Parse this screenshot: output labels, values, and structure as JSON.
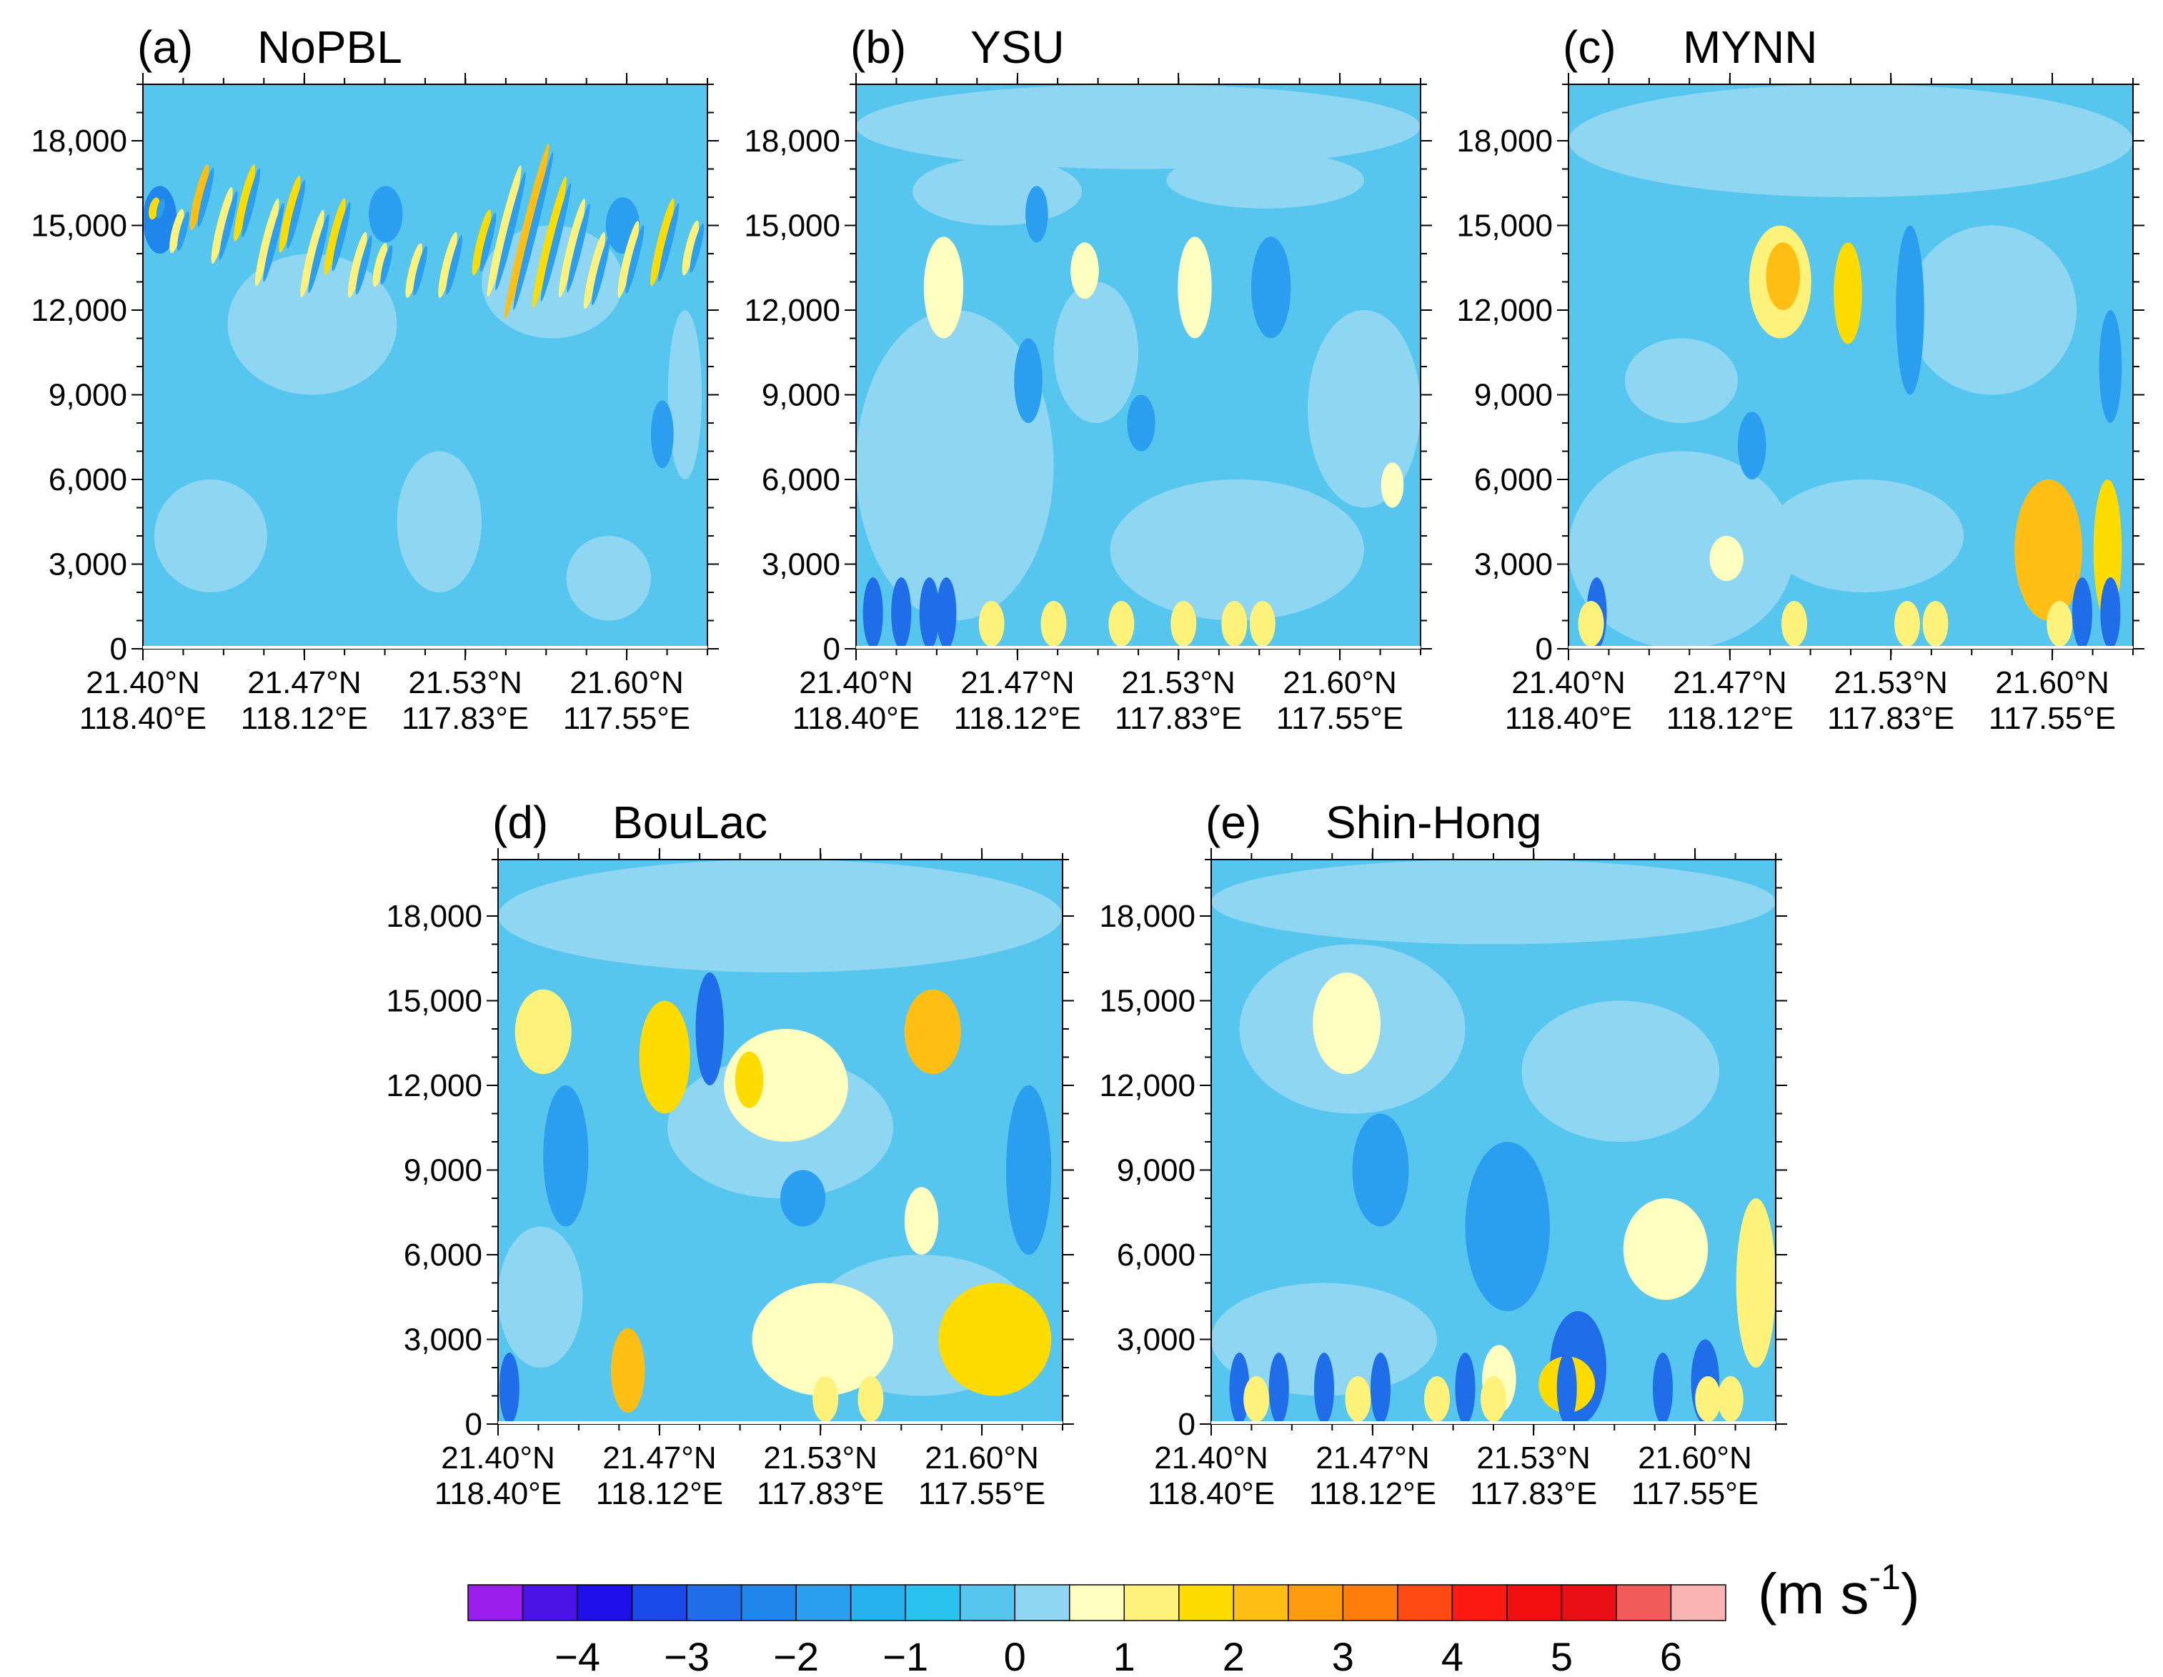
{
  "chart_data": {
    "type": "heatmap",
    "figure_layout": "2 rows: panels a, b, c on top; panels d, e centered below; shared horizontal colorbar at bottom",
    "colormap": {
      "colors": [
        "#9b1ded",
        "#4a14e6",
        "#1f0fe8",
        "#1a4be8",
        "#1f6de8",
        "#1f87ec",
        "#2b9ef0",
        "#23b2ee",
        "#2ac3f0",
        "#57c6ee",
        "#8ed6f2",
        "#ffffc0",
        "#fff27a",
        "#ffdc00",
        "#ffbe14",
        "#ff9b0d",
        "#ff7d0a",
        "#ff4a14",
        "#fd1a12",
        "#f20f0f",
        "#e80f15",
        "#f35a5a",
        "#fab4b4"
      ],
      "tick_labels": [
        "-4",
        "-3",
        "-2",
        "-1",
        "0",
        "1",
        "2",
        "3",
        "4",
        "5",
        "6"
      ],
      "unit_base": "(m s",
      "unit_exp": "-1",
      "unit_close": ")"
    },
    "y_axis": {
      "ticks": [
        0,
        3000,
        6000,
        9000,
        12000,
        15000,
        18000
      ],
      "tick_labels": [
        "0",
        "3,000",
        "6,000",
        "9,000",
        "12,000",
        "15,000",
        "18,000"
      ],
      "ylim": [
        0,
        20000
      ],
      "minor_step": 1000
    },
    "x_axis": {
      "tick_labels_lat": [
        "21.40°N",
        "21.47°N",
        "21.53°N",
        "21.60°N"
      ],
      "tick_labels_lon": [
        "118.40°E",
        "118.12°E",
        "117.83°E",
        "117.55°E"
      ],
      "tick_fractions": [
        0,
        0.286,
        0.571,
        0.857
      ]
    },
    "panels": [
      {
        "id": "a",
        "letter": "(a)",
        "name": "NoPBL",
        "background": "#57c6ee",
        "blobs": [
          [
            0.0,
            0.0,
            1.0,
            0.55,
            "#57c6ee"
          ],
          [
            0.15,
            0.45,
            0.3,
            0.25,
            "#8ed6f2"
          ],
          [
            0.6,
            0.55,
            0.25,
            0.2,
            "#8ed6f2"
          ],
          [
            0.02,
            0.1,
            0.2,
            0.2,
            "#8ed6f2"
          ],
          [
            0.45,
            0.1,
            0.15,
            0.25,
            "#8ed6f2"
          ],
          [
            0.75,
            0.05,
            0.15,
            0.15,
            "#8ed6f2"
          ],
          [
            0.93,
            0.3,
            0.06,
            0.3,
            "#8ed6f2"
          ]
        ],
        "streaks": [
          [
            0.02,
            0.76,
            0.8,
            "#ffdc00"
          ],
          [
            0.06,
            0.7,
            0.78,
            "#fff27a"
          ],
          [
            0.1,
            0.74,
            0.86,
            "#ffbe14"
          ],
          [
            0.14,
            0.68,
            0.82,
            "#fff27a"
          ],
          [
            0.18,
            0.72,
            0.86,
            "#ffdc00"
          ],
          [
            0.22,
            0.64,
            0.8,
            "#fff27a"
          ],
          [
            0.26,
            0.7,
            0.84,
            "#ffdc00"
          ],
          [
            0.3,
            0.62,
            0.78,
            "#fff27a"
          ],
          [
            0.34,
            0.66,
            0.8,
            "#ffdc00"
          ],
          [
            0.38,
            0.62,
            0.74,
            "#fff27a"
          ],
          [
            0.42,
            0.64,
            0.72,
            "#fff27a"
          ],
          [
            0.48,
            0.62,
            0.72,
            "#fff27a"
          ],
          [
            0.54,
            0.62,
            0.74,
            "#fff27a"
          ],
          [
            0.6,
            0.66,
            0.78,
            "#ffdc00"
          ],
          [
            0.64,
            0.62,
            0.86,
            "#fff27a"
          ],
          [
            0.68,
            0.58,
            0.9,
            "#ffbe14"
          ],
          [
            0.72,
            0.6,
            0.84,
            "#ffdc00"
          ],
          [
            0.76,
            0.62,
            0.8,
            "#fff27a"
          ],
          [
            0.8,
            0.6,
            0.74,
            "#fff27a"
          ],
          [
            0.86,
            0.62,
            0.76,
            "#fff27a"
          ],
          [
            0.92,
            0.64,
            0.8,
            "#ffdc00"
          ],
          [
            0.97,
            0.66,
            0.76,
            "#fff27a"
          ]
        ],
        "dark": [
          [
            0.0,
            0.7,
            0.06,
            0.12,
            "#1f87ec"
          ],
          [
            0.4,
            0.72,
            0.06,
            0.1,
            "#2b9ef0"
          ],
          [
            0.82,
            0.7,
            0.06,
            0.1,
            "#2b9ef0"
          ],
          [
            0.9,
            0.32,
            0.04,
            0.12,
            "#2b9ef0"
          ]
        ]
      },
      {
        "id": "b",
        "letter": "(b)",
        "name": "YSU",
        "background": "#57c6ee",
        "blobs": [
          [
            0.0,
            0.85,
            1.0,
            0.15,
            "#8ed6f2"
          ],
          [
            0.1,
            0.75,
            0.3,
            0.12,
            "#8ed6f2"
          ],
          [
            0.55,
            0.78,
            0.35,
            0.1,
            "#8ed6f2"
          ],
          [
            0.0,
            0.05,
            0.35,
            0.55,
            "#8ed6f2"
          ],
          [
            0.45,
            0.05,
            0.45,
            0.25,
            "#8ed6f2"
          ],
          [
            0.8,
            0.25,
            0.2,
            0.35,
            "#8ed6f2"
          ],
          [
            0.35,
            0.4,
            0.15,
            0.25,
            "#8ed6f2"
          ]
        ],
        "streaks": [],
        "dark": [
          [
            0.28,
            0.4,
            0.05,
            0.15,
            "#2b9ef0"
          ],
          [
            0.48,
            0.35,
            0.05,
            0.1,
            "#2b9ef0"
          ],
          [
            0.7,
            0.55,
            0.07,
            0.18,
            "#2b9ef0"
          ],
          [
            0.3,
            0.72,
            0.04,
            0.1,
            "#2b9ef0"
          ]
        ],
        "warm": [
          [
            0.12,
            0.55,
            0.07,
            0.18,
            "#ffffc0"
          ],
          [
            0.38,
            0.62,
            0.05,
            0.1,
            "#ffffc0"
          ],
          [
            0.57,
            0.55,
            0.06,
            0.18,
            "#ffffc0"
          ],
          [
            0.93,
            0.25,
            0.04,
            0.08,
            "#ffffc0"
          ]
        ],
        "surface": {
          "cold": [
            0.03,
            0.08,
            0.13,
            0.16
          ],
          "warm": [
            0.24,
            0.35,
            0.47,
            0.58,
            0.67,
            0.72
          ]
        }
      },
      {
        "id": "c",
        "letter": "(c)",
        "name": "MYNN",
        "background": "#57c6ee",
        "blobs": [
          [
            0.0,
            0.8,
            1.0,
            0.2,
            "#8ed6f2"
          ],
          [
            0.0,
            0.0,
            0.4,
            0.35,
            "#8ed6f2"
          ],
          [
            0.35,
            0.1,
            0.35,
            0.2,
            "#8ed6f2"
          ],
          [
            0.6,
            0.45,
            0.3,
            0.3,
            "#8ed6f2"
          ],
          [
            0.1,
            0.4,
            0.2,
            0.15,
            "#8ed6f2"
          ]
        ],
        "streaks": [],
        "dark": [
          [
            0.3,
            0.3,
            0.05,
            0.12,
            "#2b9ef0"
          ],
          [
            0.58,
            0.45,
            0.05,
            0.3,
            "#2b9ef0"
          ],
          [
            0.94,
            0.4,
            0.04,
            0.2,
            "#2b9ef0"
          ]
        ],
        "warm": [
          [
            0.32,
            0.55,
            0.11,
            0.2,
            "#fff27a"
          ],
          [
            0.35,
            0.6,
            0.06,
            0.12,
            "#ffbe14"
          ],
          [
            0.47,
            0.54,
            0.05,
            0.18,
            "#ffdc00"
          ],
          [
            0.79,
            0.05,
            0.12,
            0.25,
            "#ffbe14"
          ],
          [
            0.93,
            0.05,
            0.05,
            0.25,
            "#ffdc00"
          ],
          [
            0.25,
            0.12,
            0.06,
            0.08,
            "#ffffc0"
          ]
        ],
        "surface": {
          "cold": [
            0.05,
            0.91,
            0.96
          ],
          "warm": [
            0.04,
            0.4,
            0.6,
            0.65,
            0.87
          ]
        }
      },
      {
        "id": "d",
        "letter": "(d)",
        "name": "BouLac",
        "background": "#57c6ee",
        "blobs": [
          [
            0.0,
            0.8,
            1.0,
            0.2,
            "#8ed6f2"
          ],
          [
            0.3,
            0.4,
            0.4,
            0.25,
            "#8ed6f2"
          ],
          [
            0.55,
            0.05,
            0.4,
            0.25,
            "#8ed6f2"
          ],
          [
            0.0,
            0.1,
            0.15,
            0.25,
            "#8ed6f2"
          ]
        ],
        "streaks": [],
        "dark": [
          [
            0.35,
            0.6,
            0.05,
            0.2,
            "#1f6de8"
          ],
          [
            0.08,
            0.35,
            0.08,
            0.25,
            "#2b9ef0"
          ],
          [
            0.5,
            0.35,
            0.08,
            0.1,
            "#2b9ef0"
          ],
          [
            0.9,
            0.3,
            0.08,
            0.3,
            "#2b9ef0"
          ]
        ],
        "warm": [
          [
            0.03,
            0.62,
            0.1,
            0.15,
            "#fff27a"
          ],
          [
            0.25,
            0.55,
            0.09,
            0.2,
            "#ffdc00"
          ],
          [
            0.4,
            0.5,
            0.22,
            0.2,
            "#ffffc0"
          ],
          [
            0.42,
            0.56,
            0.05,
            0.1,
            "#ffdc00"
          ],
          [
            0.72,
            0.62,
            0.1,
            0.15,
            "#ffbe14"
          ],
          [
            0.72,
            0.3,
            0.06,
            0.12,
            "#ffffc0"
          ],
          [
            0.45,
            0.05,
            0.25,
            0.2,
            "#ffffc0"
          ],
          [
            0.2,
            0.02,
            0.06,
            0.15,
            "#ffbe14"
          ],
          [
            0.78,
            0.05,
            0.2,
            0.2,
            "#ffdc00"
          ]
        ],
        "surface": {
          "cold": [
            0.02
          ],
          "warm": [
            0.58,
            0.66
          ]
        }
      },
      {
        "id": "e",
        "letter": "(e)",
        "name": "Shin-Hong",
        "background": "#57c6ee",
        "blobs": [
          [
            0.0,
            0.85,
            1.0,
            0.15,
            "#8ed6f2"
          ],
          [
            0.05,
            0.55,
            0.4,
            0.3,
            "#8ed6f2"
          ],
          [
            0.55,
            0.5,
            0.35,
            0.25,
            "#8ed6f2"
          ],
          [
            0.0,
            0.05,
            0.4,
            0.2,
            "#8ed6f2"
          ]
        ],
        "streaks": [],
        "dark": [
          [
            0.45,
            0.2,
            0.15,
            0.3,
            "#2b9ef0"
          ],
          [
            0.6,
            0.0,
            0.1,
            0.2,
            "#1f6de8"
          ],
          [
            0.85,
            0.0,
            0.05,
            0.15,
            "#1f6de8"
          ],
          [
            0.25,
            0.35,
            0.1,
            0.2,
            "#2b9ef0"
          ]
        ],
        "warm": [
          [
            0.18,
            0.62,
            0.12,
            0.18,
            "#ffffc0"
          ],
          [
            0.73,
            0.22,
            0.15,
            0.18,
            "#ffffc0"
          ],
          [
            0.93,
            0.1,
            0.07,
            0.3,
            "#fff27a"
          ],
          [
            0.58,
            0.02,
            0.1,
            0.1,
            "#ffdc00"
          ],
          [
            0.48,
            0.02,
            0.06,
            0.12,
            "#ffffc0"
          ]
        ],
        "surface": {
          "cold": [
            0.05,
            0.12,
            0.2,
            0.3,
            0.45,
            0.63,
            0.8
          ],
          "warm": [
            0.08,
            0.26,
            0.4,
            0.5,
            0.88,
            0.92
          ]
        }
      }
    ]
  }
}
